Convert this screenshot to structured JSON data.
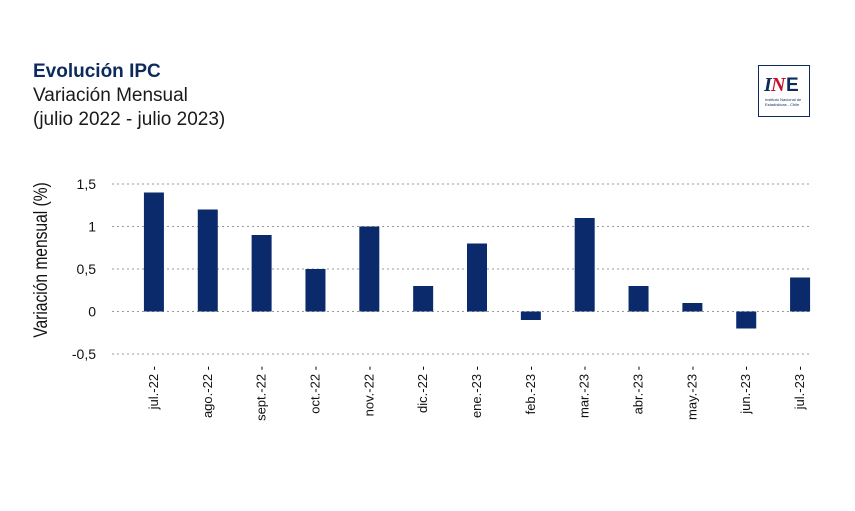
{
  "header": {
    "title": "Evolución IPC",
    "subtitle": "Variación Mensual",
    "period": "(julio 2022 - julio 2023)"
  },
  "logo": {
    "mark": "INE",
    "text_line1": "Instituto Nacional de",
    "text_line2": "Estadísticas - Chile"
  },
  "colors": {
    "bar": "#0b2a6b",
    "grid": "#9a9a9a",
    "title": "#0d2a5c",
    "logo_red": "#c8102e"
  },
  "chart_data": {
    "type": "bar",
    "categories": [
      "jul.-22",
      "ago.-22",
      "sept.-22",
      "oct.-22",
      "nov.-22",
      "dic.-22",
      "ene.-23",
      "feb.-23",
      "mar.-23",
      "abr.-23",
      "may.-23",
      "jun.-23",
      "jul.-23"
    ],
    "values": [
      1.4,
      1.2,
      0.9,
      0.5,
      1.0,
      0.3,
      0.8,
      -0.1,
      1.1,
      0.3,
      0.1,
      -0.2,
      0.4
    ],
    "ylabel": "Variación mensual (%)",
    "xlabel": "",
    "ylim": [
      -0.5,
      1.5
    ],
    "yticks": [
      -0.5,
      0,
      0.5,
      1,
      1.5
    ],
    "ytick_labels": [
      "-0,5",
      "0",
      "0,5",
      "1",
      "1,5"
    ],
    "grid": "horizontal dotted",
    "legend": "none"
  }
}
